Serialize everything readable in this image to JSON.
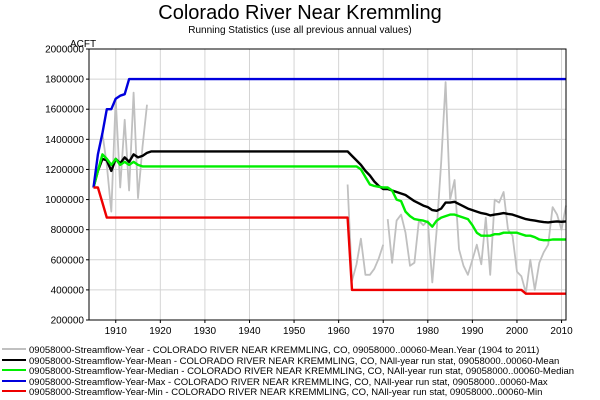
{
  "chart_data": {
    "type": "line",
    "title": "Colorado River Near Kremmling",
    "subtitle": "Running Statistics (use all previous annual values)",
    "ylabel": "ACFT",
    "xlim": [
      1904,
      2011
    ],
    "ylim": [
      200000,
      2000000
    ],
    "x_ticks": [
      1910,
      1920,
      1930,
      1940,
      1950,
      1960,
      1970,
      1980,
      1990,
      2000,
      2010
    ],
    "y_ticks": [
      200000,
      400000,
      600000,
      800000,
      1000000,
      1200000,
      1400000,
      1600000,
      1800000,
      2000000
    ],
    "y_tick_labels": [
      "200000",
      "400000",
      "600000",
      "800000",
      "1000000",
      "1200000",
      "1400000",
      "1600000",
      "1800000",
      "2000000"
    ],
    "grid": true,
    "legend_position": "bottom",
    "series": [
      {
        "name": "09058000-Streamflow-Year - COLORADO RIVER NEAR KREMMLING, CO, 09058000..00060-Mean.Year (1904 to 2011)",
        "color": "#c0c0c0",
        "width": 1.8,
        "segments": [
          [
            [
              1905,
              1080000
            ],
            [
              1906,
              1300000
            ],
            [
              1907,
              1440000
            ],
            [
              1908,
              1230000
            ],
            [
              1909,
              920000
            ],
            [
              1910,
              1670000
            ],
            [
              1911,
              1080000
            ],
            [
              1912,
              1530000
            ],
            [
              1913,
              1060000
            ],
            [
              1914,
              1710000
            ],
            [
              1915,
              1010000
            ],
            [
              1916,
              1350000
            ],
            [
              1917,
              1630000
            ]
          ],
          [
            [
              1962,
              1100000
            ],
            [
              1963,
              460000
            ],
            [
              1964,
              570000
            ],
            [
              1965,
              740000
            ],
            [
              1966,
              500000
            ],
            [
              1967,
              500000
            ],
            [
              1968,
              540000
            ],
            [
              1969,
              610000
            ],
            [
              1970,
              700000
            ]
          ],
          [
            [
              1971,
              870000
            ],
            [
              1972,
              580000
            ],
            [
              1973,
              860000
            ],
            [
              1974,
              900000
            ],
            [
              1975,
              780000
            ],
            [
              1976,
              560000
            ],
            [
              1977,
              580000
            ],
            [
              1978,
              860000
            ],
            [
              1979,
              830000
            ],
            [
              1980,
              860000
            ],
            [
              1981,
              450000
            ],
            [
              1982,
              800000
            ],
            [
              1983,
              1250000
            ],
            [
              1984,
              1780000
            ],
            [
              1985,
              1000000
            ],
            [
              1986,
              1130000
            ],
            [
              1987,
              670000
            ],
            [
              1988,
              560000
            ],
            [
              1989,
              500000
            ],
            [
              1990,
              600000
            ],
            [
              1991,
              700000
            ],
            [
              1992,
              570000
            ],
            [
              1993,
              880000
            ],
            [
              1994,
              500000
            ],
            [
              1995,
              1000000
            ],
            [
              1996,
              980000
            ],
            [
              1997,
              1050000
            ],
            [
              1998,
              800000
            ],
            [
              1999,
              760000
            ],
            [
              2000,
              520000
            ],
            [
              2001,
              490000
            ],
            [
              2002,
              380000
            ],
            [
              2003,
              600000
            ],
            [
              2004,
              400000
            ],
            [
              2005,
              580000
            ],
            [
              2006,
              650000
            ],
            [
              2007,
              700000
            ],
            [
              2008,
              950000
            ],
            [
              2009,
              900000
            ],
            [
              2010,
              800000
            ],
            [
              2011,
              960000
            ]
          ]
        ]
      },
      {
        "name": "09058000-Streamflow-Year-Mean - COLORADO RIVER NEAR KREMMLING, CO, NAll-year run stat, 09058000..00060-Mean",
        "color": "#000000",
        "width": 2.4,
        "segments": [
          [
            [
              1905,
              1080000
            ],
            [
              1906,
              1190000
            ],
            [
              1907,
              1270000
            ],
            [
              1908,
              1260000
            ],
            [
              1909,
              1190000
            ],
            [
              1910,
              1270000
            ],
            [
              1911,
              1240000
            ],
            [
              1912,
              1280000
            ],
            [
              1913,
              1250000
            ],
            [
              1914,
              1300000
            ],
            [
              1915,
              1280000
            ],
            [
              1916,
              1290000
            ],
            [
              1917,
              1310000
            ],
            [
              1918,
              1320000
            ],
            [
              1962,
              1320000
            ],
            [
              1963,
              1290000
            ],
            [
              1964,
              1260000
            ],
            [
              1965,
              1230000
            ],
            [
              1966,
              1190000
            ],
            [
              1967,
              1160000
            ],
            [
              1968,
              1120000
            ],
            [
              1969,
              1090000
            ],
            [
              1970,
              1070000
            ],
            [
              1971,
              1070000
            ],
            [
              1972,
              1060000
            ],
            [
              1973,
              1050000
            ],
            [
              1974,
              1040000
            ],
            [
              1975,
              1030000
            ],
            [
              1976,
              1010000
            ],
            [
              1977,
              990000
            ],
            [
              1978,
              975000
            ],
            [
              1979,
              960000
            ],
            [
              1980,
              950000
            ],
            [
              1981,
              930000
            ],
            [
              1982,
              925000
            ],
            [
              1983,
              940000
            ],
            [
              1984,
              980000
            ],
            [
              1985,
              980000
            ],
            [
              1986,
              985000
            ],
            [
              1987,
              970000
            ],
            [
              1988,
              955000
            ],
            [
              1989,
              940000
            ],
            [
              1990,
              930000
            ],
            [
              1991,
              920000
            ],
            [
              1992,
              910000
            ],
            [
              1993,
              905000
            ],
            [
              1994,
              895000
            ],
            [
              1995,
              900000
            ],
            [
              1996,
              905000
            ],
            [
              1997,
              910000
            ],
            [
              1998,
              905000
            ],
            [
              1999,
              900000
            ],
            [
              2000,
              890000
            ],
            [
              2001,
              880000
            ],
            [
              2002,
              870000
            ],
            [
              2003,
              865000
            ],
            [
              2004,
              860000
            ],
            [
              2005,
              855000
            ],
            [
              2006,
              850000
            ],
            [
              2007,
              848000
            ],
            [
              2008,
              852000
            ],
            [
              2009,
              855000
            ],
            [
              2010,
              852000
            ],
            [
              2011,
              855000
            ]
          ]
        ]
      },
      {
        "name": "09058000-Streamflow-Year-Median - COLORADO RIVER NEAR KREMMLING, CO, NAll-year run stat, 09058000..00060-Median",
        "color": "#00ee00",
        "width": 2.4,
        "segments": [
          [
            [
              1905,
              1080000
            ],
            [
              1906,
              1190000
            ],
            [
              1907,
              1300000
            ],
            [
              1908,
              1270000
            ],
            [
              1909,
              1230000
            ],
            [
              1910,
              1270000
            ],
            [
              1911,
              1230000
            ],
            [
              1912,
              1250000
            ],
            [
              1913,
              1230000
            ],
            [
              1914,
              1250000
            ],
            [
              1915,
              1230000
            ],
            [
              1916,
              1220000
            ],
            [
              1962,
              1220000
            ],
            [
              1963,
              1220000
            ],
            [
              1964,
              1220000
            ],
            [
              1965,
              1200000
            ],
            [
              1966,
              1150000
            ],
            [
              1967,
              1100000
            ],
            [
              1968,
              1090000
            ],
            [
              1969,
              1085000
            ],
            [
              1970,
              1080000
            ],
            [
              1971,
              1080000
            ],
            [
              1972,
              1060000
            ],
            [
              1973,
              1000000
            ],
            [
              1974,
              990000
            ],
            [
              1975,
              920000
            ],
            [
              1976,
              890000
            ],
            [
              1977,
              870000
            ],
            [
              1978,
              865000
            ],
            [
              1979,
              860000
            ],
            [
              1980,
              850000
            ],
            [
              1981,
              820000
            ],
            [
              1982,
              860000
            ],
            [
              1983,
              880000
            ],
            [
              1984,
              890000
            ],
            [
              1985,
              900000
            ],
            [
              1986,
              900000
            ],
            [
              1987,
              890000
            ],
            [
              1988,
              880000
            ],
            [
              1989,
              870000
            ],
            [
              1990,
              830000
            ],
            [
              1991,
              780000
            ],
            [
              1992,
              760000
            ],
            [
              1993,
              760000
            ],
            [
              1994,
              760000
            ],
            [
              1995,
              770000
            ],
            [
              1996,
              770000
            ],
            [
              1997,
              780000
            ],
            [
              1998,
              780000
            ],
            [
              1999,
              780000
            ],
            [
              2000,
              780000
            ],
            [
              2001,
              770000
            ],
            [
              2002,
              760000
            ],
            [
              2003,
              760000
            ],
            [
              2004,
              750000
            ],
            [
              2005,
              735000
            ],
            [
              2006,
              730000
            ],
            [
              2007,
              730000
            ],
            [
              2008,
              735000
            ],
            [
              2009,
              735000
            ],
            [
              2010,
              735000
            ],
            [
              2011,
              735000
            ]
          ]
        ]
      },
      {
        "name": "09058000-Streamflow-Year-Max - COLORADO RIVER NEAR KREMMLING, CO, NAll-year run stat, 09058000..00060-Max",
        "color": "#0000dd",
        "width": 2.4,
        "segments": [
          [
            [
              1905,
              1080000
            ],
            [
              1906,
              1300000
            ],
            [
              1907,
              1440000
            ],
            [
              1908,
              1600000
            ],
            [
              1909,
              1600000
            ],
            [
              1910,
              1670000
            ],
            [
              1911,
              1690000
            ],
            [
              1912,
              1700000
            ],
            [
              1913,
              1800000
            ],
            [
              2011,
              1800000
            ]
          ]
        ]
      },
      {
        "name": "09058000-Streamflow-Year-Min - COLORADO RIVER NEAR KREMMLING, CO, NAll-year run stat, 09058000..00060-Min",
        "color": "#ee0000",
        "width": 2.4,
        "segments": [
          [
            [
              1905,
              1080000
            ],
            [
              1906,
              1080000
            ],
            [
              1907,
              980000
            ],
            [
              1908,
              880000
            ],
            [
              1962,
              880000
            ],
            [
              1963,
              400000
            ],
            [
              2001,
              400000
            ],
            [
              2002,
              375000
            ],
            [
              2011,
              375000
            ]
          ]
        ]
      }
    ]
  }
}
